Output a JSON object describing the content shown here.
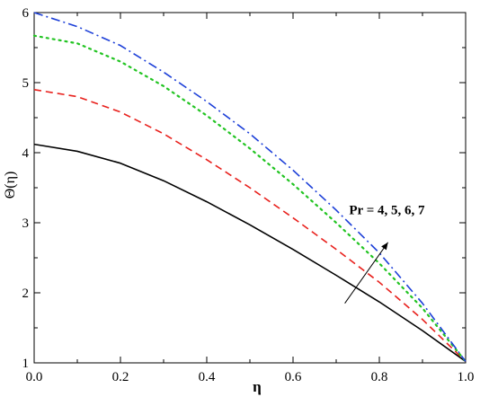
{
  "chart_data": {
    "type": "line",
    "title": "",
    "xlabel": "η",
    "ylabel": "Θ(η)",
    "xlim": [
      0.0,
      1.0
    ],
    "ylim": [
      1,
      6
    ],
    "xticks": [
      "0.0",
      "0.2",
      "0.4",
      "0.6",
      "0.8",
      "1.0"
    ],
    "yticks": [
      "1",
      "2",
      "3",
      "4",
      "5",
      "6"
    ],
    "grid": false,
    "legend": "none",
    "annotation": {
      "text": "Pr = 4, 5, 6, 7",
      "arrow_from": [
        0.72,
        1.85
      ],
      "arrow_to": [
        0.82,
        2.72
      ],
      "text_anchor": [
        0.73,
        3.12
      ]
    },
    "x": [
      0.0,
      0.1,
      0.2,
      0.3,
      0.4,
      0.5,
      0.6,
      0.7,
      0.8,
      0.9,
      1.0
    ],
    "series": [
      {
        "style": "solid",
        "color": "#000000",
        "values": [
          4.12,
          4.02,
          3.85,
          3.6,
          3.3,
          2.97,
          2.62,
          2.25,
          1.87,
          1.46,
          1.02
        ]
      },
      {
        "style": "dashed",
        "color": "#e8201c",
        "values": [
          4.9,
          4.8,
          4.58,
          4.27,
          3.9,
          3.5,
          3.07,
          2.62,
          2.15,
          1.62,
          1.02
        ]
      },
      {
        "style": "dotted",
        "color": "#22c422",
        "values": [
          5.67,
          5.56,
          5.3,
          4.95,
          4.53,
          4.06,
          3.55,
          3.0,
          2.42,
          1.78,
          1.02
        ]
      },
      {
        "style": "dashdot",
        "color": "#1c3fd8",
        "values": [
          6.0,
          5.8,
          5.53,
          5.15,
          4.73,
          4.27,
          3.75,
          3.18,
          2.57,
          1.85,
          1.02
        ]
      }
    ]
  }
}
